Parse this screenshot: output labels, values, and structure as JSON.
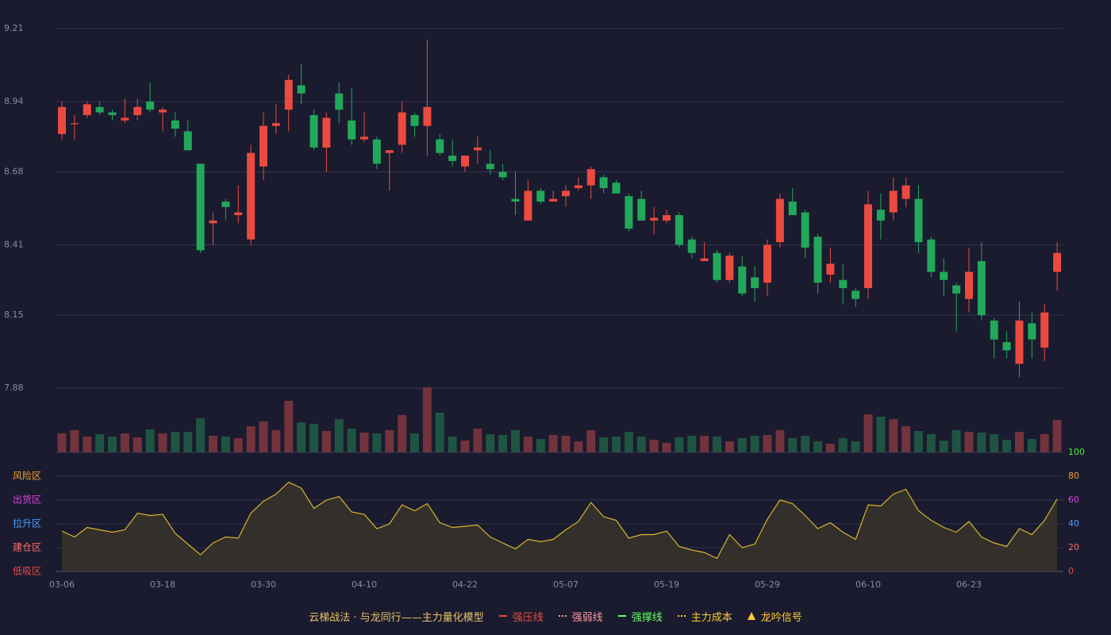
{
  "chart_data": [
    {
      "type": "candlestick",
      "open": [
        8.82,
        8.86,
        8.89,
        8.92,
        8.9,
        8.87,
        8.89,
        8.94,
        8.9,
        8.87,
        8.83,
        8.71,
        8.49,
        8.57,
        8.52,
        8.43,
        8.7,
        8.85,
        8.91,
        9.0,
        8.89,
        8.77,
        8.97,
        8.87,
        8.8,
        8.8,
        8.75,
        8.78,
        8.89,
        8.85,
        8.8,
        8.74,
        8.7,
        8.76,
        8.71,
        8.68,
        8.58,
        8.5,
        8.61,
        8.57,
        8.59,
        8.62,
        8.63,
        8.66,
        8.64,
        8.59,
        8.58,
        8.5,
        8.5,
        8.52,
        8.43,
        8.35,
        8.38,
        8.28,
        8.33,
        8.29,
        8.27,
        8.42,
        8.57,
        8.53,
        8.44,
        8.3,
        8.28,
        8.24,
        8.25,
        8.54,
        8.53,
        8.58,
        8.58,
        8.43,
        8.31,
        8.26,
        8.21,
        8.35,
        8.13,
        8.05,
        7.97,
        8.12,
        8.03,
        8.31
      ],
      "high": [
        8.94,
        8.89,
        8.94,
        8.94,
        8.91,
        8.95,
        8.95,
        9.01,
        8.92,
        8.9,
        8.87,
        8.71,
        8.53,
        8.58,
        8.63,
        8.78,
        8.9,
        8.93,
        9.04,
        9.08,
        8.91,
        8.9,
        9.01,
        8.99,
        8.9,
        8.81,
        8.76,
        8.94,
        8.9,
        9.17,
        8.82,
        8.8,
        8.74,
        8.81,
        8.76,
        8.71,
        8.68,
        8.65,
        8.62,
        8.61,
        8.63,
        8.66,
        8.7,
        8.67,
        8.65,
        8.6,
        8.61,
        8.55,
        8.54,
        8.53,
        8.44,
        8.42,
        8.39,
        8.38,
        8.37,
        8.33,
        8.43,
        8.6,
        8.62,
        8.54,
        8.45,
        8.4,
        8.34,
        8.25,
        8.61,
        8.6,
        8.66,
        8.66,
        8.63,
        8.44,
        8.36,
        8.27,
        8.4,
        8.42,
        8.14,
        8.09,
        8.2,
        8.16,
        8.19,
        8.42
      ],
      "low": [
        8.8,
        8.8,
        8.88,
        8.89,
        8.87,
        8.86,
        8.87,
        8.9,
        8.83,
        8.81,
        8.76,
        8.38,
        8.41,
        8.5,
        8.49,
        8.41,
        8.65,
        8.82,
        8.83,
        8.93,
        8.76,
        8.68,
        8.86,
        8.78,
        8.79,
        8.69,
        8.61,
        8.75,
        8.81,
        8.74,
        8.74,
        8.7,
        8.68,
        8.71,
        8.67,
        8.65,
        8.52,
        8.5,
        8.56,
        8.57,
        8.55,
        8.61,
        8.58,
        8.6,
        8.6,
        8.46,
        8.5,
        8.45,
        8.49,
        8.4,
        8.36,
        8.35,
        8.27,
        8.27,
        8.22,
        8.2,
        8.22,
        8.4,
        8.52,
        8.36,
        8.23,
        8.27,
        8.19,
        8.18,
        8.21,
        8.43,
        8.5,
        8.55,
        8.38,
        8.29,
        8.22,
        8.09,
        8.16,
        8.13,
        7.99,
        7.99,
        7.92,
        7.99,
        7.98,
        8.24
      ],
      "close": [
        8.92,
        8.86,
        8.93,
        8.9,
        8.89,
        8.88,
        8.92,
        8.91,
        8.91,
        8.84,
        8.76,
        8.39,
        8.5,
        8.55,
        8.53,
        8.75,
        8.85,
        8.86,
        9.02,
        8.97,
        8.77,
        8.88,
        8.91,
        8.8,
        8.81,
        8.71,
        8.76,
        8.9,
        8.85,
        8.92,
        8.75,
        8.72,
        8.74,
        8.77,
        8.69,
        8.66,
        8.57,
        8.61,
        8.57,
        8.58,
        8.61,
        8.63,
        8.69,
        8.62,
        8.6,
        8.47,
        8.5,
        8.51,
        8.52,
        8.41,
        8.38,
        8.36,
        8.28,
        8.37,
        8.23,
        8.25,
        8.41,
        8.58,
        8.52,
        8.4,
        8.27,
        8.34,
        8.25,
        8.21,
        8.56,
        8.5,
        8.61,
        8.63,
        8.42,
        8.31,
        8.28,
        8.23,
        8.31,
        8.15,
        8.06,
        8.02,
        8.13,
        8.06,
        8.16,
        8.38
      ],
      "ylim": [
        7.88,
        9.21
      ],
      "yticks": [
        7.88,
        8.15,
        8.41,
        8.68,
        8.94,
        9.21
      ],
      "grid": true,
      "up_color": "#ec4a3f",
      "down_color": "#22a85a"
    },
    {
      "type": "bar",
      "values": [
        24,
        28,
        20,
        23,
        20,
        24,
        19,
        29,
        24,
        26,
        26,
        43,
        21,
        20,
        18,
        33,
        39,
        28,
        65,
        38,
        36,
        27,
        42,
        30,
        25,
        24,
        28,
        47,
        24,
        82,
        50,
        20,
        15,
        30,
        23,
        22,
        28,
        20,
        17,
        22,
        21,
        14,
        28,
        19,
        20,
        26,
        20,
        16,
        12,
        19,
        21,
        21,
        20,
        14,
        18,
        21,
        22,
        28,
        18,
        21,
        14,
        11,
        18,
        14,
        48,
        45,
        42,
        33,
        27,
        23,
        15,
        28,
        26,
        25,
        23,
        16,
        26,
        17,
        23,
        41
      ],
      "up_color": "#73333c",
      "down_color": "#1f5443"
    },
    {
      "type": "line",
      "categories": [
        "03-06",
        null,
        null,
        null,
        null,
        null,
        null,
        null,
        "03-18",
        null,
        null,
        null,
        null,
        null,
        null,
        null,
        "03-30",
        null,
        null,
        null,
        null,
        null,
        null,
        null,
        "04-10",
        null,
        null,
        null,
        null,
        null,
        null,
        null,
        "04-22",
        null,
        null,
        null,
        null,
        null,
        null,
        null,
        "05-07",
        null,
        null,
        null,
        null,
        null,
        null,
        null,
        "05-19",
        null,
        null,
        null,
        null,
        null,
        null,
        null,
        "05-29",
        null,
        null,
        null,
        null,
        null,
        null,
        null,
        "06-10",
        null,
        null,
        null,
        null,
        null,
        null,
        null,
        "06-23",
        null,
        null,
        null,
        null,
        null,
        null,
        null
      ],
      "values": [
        34,
        29,
        37,
        35,
        33,
        35,
        49,
        47,
        48,
        32,
        23,
        14,
        24,
        29,
        28,
        49,
        59,
        65,
        75,
        70,
        53,
        60,
        63,
        50,
        48,
        36,
        40,
        56,
        51,
        57,
        41,
        37,
        38,
        39,
        29,
        24,
        19,
        27,
        25,
        27,
        35,
        42,
        58,
        46,
        43,
        28,
        31,
        31,
        34,
        21,
        18,
        16,
        11,
        31,
        20,
        23,
        44,
        60,
        57,
        47,
        36,
        41,
        33,
        27,
        56,
        55,
        65,
        69,
        51,
        43,
        37,
        33,
        42,
        29,
        24,
        21,
        36,
        31,
        43,
        61
      ],
      "color": "#d8b62c",
      "fill": "#3a3429",
      "ylim": [
        0,
        100
      ],
      "yticks": [
        0,
        20,
        40,
        60,
        80,
        100
      ],
      "ytick_colors": [
        "#e84a4a",
        "#ff6b6b",
        "#4a9eff",
        "#e040e0",
        "#f0a030",
        "#44ee44"
      ],
      "zones": [
        {
          "label": "风险区",
          "value": 80,
          "color": "#f0a030"
        },
        {
          "label": "出货区",
          "value": 60,
          "color": "#e040e0"
        },
        {
          "label": "拉升区",
          "value": 40,
          "color": "#4a9eff"
        },
        {
          "label": "建仓区",
          "value": 20,
          "color": "#ff6b6b"
        },
        {
          "label": "低吸区",
          "value": 0,
          "color": "#e84a4a"
        }
      ]
    }
  ],
  "legend": {
    "title": "云梯战法 · 与龙同行——主力量化模型",
    "title_color": "#e8c36a",
    "items": [
      {
        "name": "强压线",
        "color": "#ec4a3f",
        "style": "solid"
      },
      {
        "name": "强弱线",
        "color": "#ff9aa2",
        "style": "dashed"
      },
      {
        "name": "强撑线",
        "color": "#66ff66",
        "style": "solid"
      },
      {
        "name": "主力成本",
        "color": "#ffcc33",
        "style": "dashed"
      },
      {
        "name": "龙吟信号",
        "color": "#ffcc33",
        "style": "triangle"
      }
    ]
  }
}
